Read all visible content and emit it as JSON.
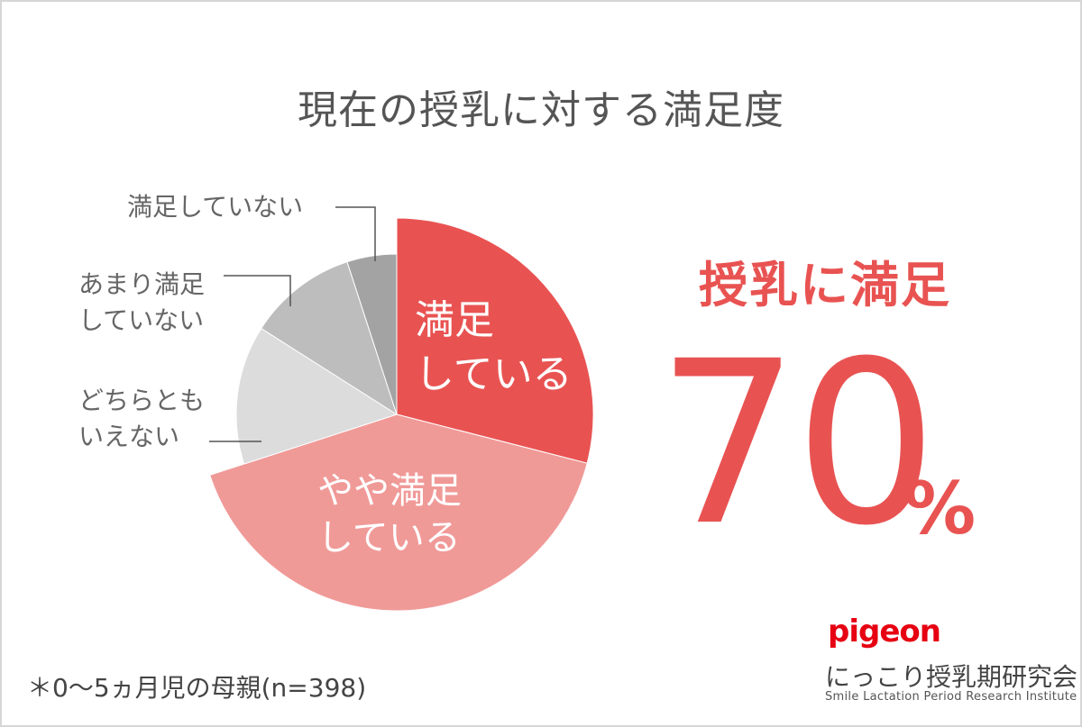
{
  "title": "現在の授乳に対する満足度",
  "chart_data": {
    "type": "pie",
    "slices": [
      {
        "label": "満足\nしている",
        "value": 29,
        "color": "#e85352"
      },
      {
        "label": "やや満足\nしている",
        "value": 41,
        "color": "#f09a98"
      },
      {
        "label": "どちらとも\nいえない",
        "value": 14,
        "color": "#dcdcdc"
      },
      {
        "label": "あまり満足\nしていない",
        "value": 11,
        "color": "#bdbdbd"
      },
      {
        "label": "満足していない",
        "value": 5,
        "color": "#a3a3a3"
      }
    ]
  },
  "highlight": {
    "label": "授乳に満足",
    "value": "70",
    "unit": "%"
  },
  "footnote": "＊0〜5ヵ月児の母親(n=398)",
  "brand": {
    "logo": "pigeon",
    "institute_jp": "にっこり授乳期研究会",
    "institute_en": "Smile Lactation Period Research Institute"
  }
}
